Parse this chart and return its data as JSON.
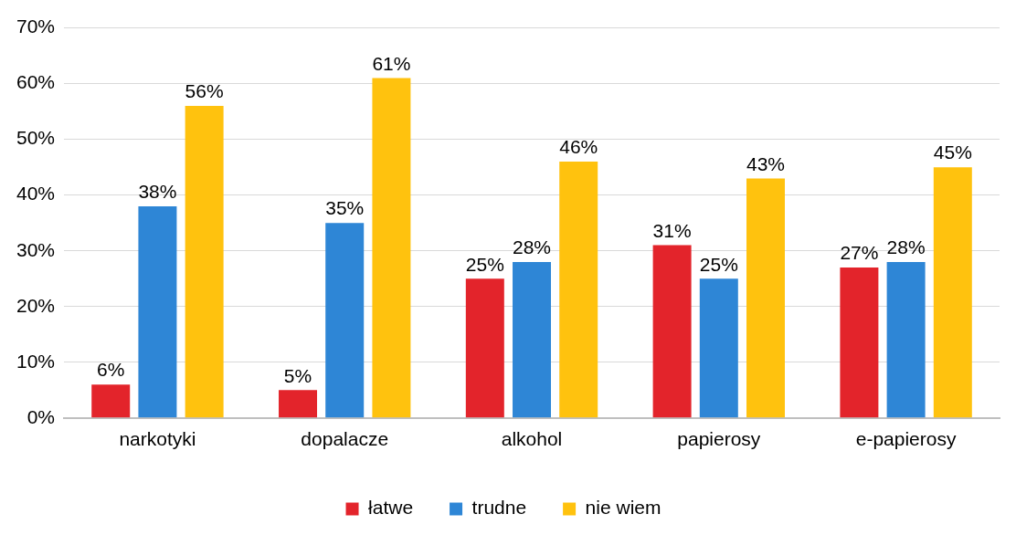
{
  "chart_data": {
    "type": "bar",
    "categories": [
      "narkotyki",
      "dopalacze",
      "alkohol",
      "papierosy",
      "e-papierosy"
    ],
    "series": [
      {
        "name": "łatwe",
        "color": "#e3242b",
        "values": [
          6,
          5,
          25,
          31,
          27
        ],
        "value_labels": [
          "6%",
          "5%",
          "25%",
          "31%",
          "27%"
        ]
      },
      {
        "name": "trudne",
        "color": "#2e86d6",
        "values": [
          38,
          35,
          28,
          25,
          28
        ],
        "value_labels": [
          "38%",
          "35%",
          "28%",
          "25%",
          "28%"
        ]
      },
      {
        "name": "nie wiem",
        "color": "#ffc20e",
        "values": [
          56,
          61,
          46,
          43,
          45
        ],
        "value_labels": [
          "56%",
          "61%",
          "46%",
          "43%",
          "45%"
        ]
      }
    ],
    "ylim": [
      0,
      70
    ],
    "yticks": [
      {
        "value": 0,
        "label": "0%"
      },
      {
        "value": 10,
        "label": "10%"
      },
      {
        "value": 20,
        "label": "20%"
      },
      {
        "value": 30,
        "label": "30%"
      },
      {
        "value": 40,
        "label": "40%"
      },
      {
        "value": 50,
        "label": "50%"
      },
      {
        "value": 60,
        "label": "60%"
      },
      {
        "value": 70,
        "label": "70%"
      }
    ],
    "grid": "y",
    "legend": "bottom"
  }
}
